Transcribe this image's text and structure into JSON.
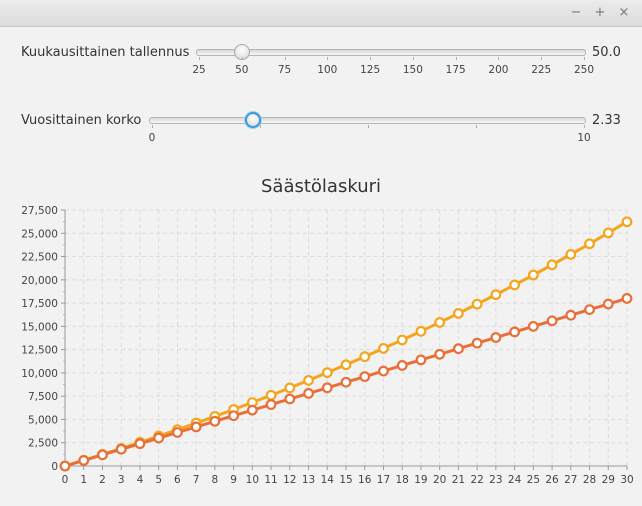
{
  "window": {
    "minimize_glyph": "−",
    "maximize_glyph": "+",
    "close_glyph": "×"
  },
  "monthly_saving": {
    "label": "Kuukausittainen tallennus",
    "min": 25,
    "max": 250,
    "value": 50,
    "value_text": "50.0",
    "tick_labels": [
      "25",
      "50",
      "75",
      "100",
      "125",
      "150",
      "175",
      "200",
      "225",
      "250"
    ]
  },
  "annual_interest": {
    "label": "Vuosittainen korko",
    "min": 0,
    "max": 10,
    "value": 2.33,
    "value_text": "2.33",
    "tick_labels": [
      "0",
      "10"
    ]
  },
  "chart_data": {
    "type": "line",
    "title": "Säästölaskuri",
    "xlabel": "",
    "ylabel": "",
    "x": [
      0,
      1,
      2,
      3,
      4,
      5,
      6,
      7,
      8,
      9,
      10,
      11,
      12,
      13,
      14,
      15,
      16,
      17,
      18,
      19,
      20,
      21,
      22,
      23,
      24,
      25,
      26,
      27,
      28,
      29,
      30
    ],
    "xlim": [
      0,
      30
    ],
    "ylim": [
      0,
      27500
    ],
    "y_ticks": [
      "0",
      "2,500",
      "5,000",
      "7,500",
      "10,000",
      "12,500",
      "15,000",
      "17,500",
      "20,000",
      "22,500",
      "25,000",
      "27,500"
    ],
    "x_ticks": [
      "0",
      "1",
      "2",
      "3",
      "4",
      "5",
      "6",
      "7",
      "8",
      "9",
      "10",
      "11",
      "12",
      "13",
      "14",
      "15",
      "16",
      "17",
      "18",
      "19",
      "20",
      "21",
      "22",
      "23",
      "24",
      "25",
      "26",
      "27",
      "28",
      "29",
      "30"
    ],
    "grid": true,
    "series": [
      {
        "color": "#f3a61d",
        "values": [
          0,
          614,
          1242,
          1885,
          2543,
          3216,
          3905,
          4610,
          5331,
          6069,
          6825,
          7598,
          8389,
          9199,
          10027,
          10875,
          11743,
          12631,
          13539,
          14469,
          15420,
          16393,
          17389,
          18408,
          19451,
          20518,
          21610,
          22727,
          23870,
          25040,
          26237
        ]
      },
      {
        "color": "#e96f39",
        "values": [
          0,
          600,
          1200,
          1800,
          2400,
          3000,
          3600,
          4200,
          4800,
          5400,
          6000,
          6600,
          7200,
          7800,
          8400,
          9000,
          9600,
          10200,
          10800,
          11400,
          12000,
          12600,
          13200,
          13800,
          14400,
          15000,
          15600,
          16200,
          16800,
          17400,
          18000
        ]
      }
    ]
  }
}
